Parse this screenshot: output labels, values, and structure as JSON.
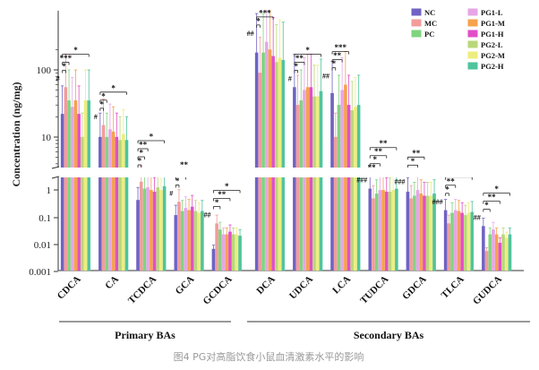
{
  "chart_data": {
    "type": "bar",
    "ylabel": "Concentration (ng/mg)",
    "y_scale": "log (broken axis)",
    "y_ticks_upper": [
      "100",
      "10"
    ],
    "y_ticks_lower": [
      "1",
      "0.1",
      "0.01",
      "0.001"
    ],
    "series": [
      {
        "name": "NC",
        "color": "#6f63c4"
      },
      {
        "name": "MC",
        "color": "#f29c9c"
      },
      {
        "name": "PC",
        "color": "#7fd47f"
      },
      {
        "name": "PG1-L",
        "color": "#e6a6e6"
      },
      {
        "name": "PG1-M",
        "color": "#f6a24e"
      },
      {
        "name": "PG1-H",
        "color": "#e14fc8"
      },
      {
        "name": "PG2-L",
        "color": "#b9d77a"
      },
      {
        "name": "PG2-M",
        "color": "#eeed7d"
      },
      {
        "name": "PG2-H",
        "color": "#4fc49d"
      }
    ],
    "categories": [
      "CDCA",
      "CA",
      "TCDCA",
      "GCA",
      "GCDCA",
      "DCA",
      "UDCA",
      "LCA",
      "TUDCA",
      "GDCA",
      "TLCA",
      "GUDCA"
    ],
    "data": [
      [
        22,
        55,
        35,
        28,
        35,
        22,
        10,
        35,
        35
      ],
      [
        10,
        15,
        10,
        13,
        12,
        10,
        9,
        11,
        9
      ],
      [
        0.35,
        1.6,
        0.9,
        1.0,
        0.8,
        0.7,
        1.0,
        0.8,
        1.1
      ],
      [
        0.1,
        0.3,
        0.14,
        0.18,
        0.15,
        0.2,
        0.14,
        0.12,
        0.14
      ],
      [
        0.006,
        0.05,
        0.03,
        0.02,
        0.02,
        0.025,
        0.02,
        0.02,
        0.018
      ],
      [
        180,
        90,
        180,
        260,
        200,
        160,
        130,
        150,
        140
      ],
      [
        55,
        30,
        35,
        50,
        55,
        55,
        40,
        40,
        48
      ],
      [
        45,
        10,
        30,
        50,
        60,
        30,
        25,
        28,
        30
      ],
      [
        0.9,
        0.4,
        0.6,
        0.8,
        0.8,
        0.7,
        0.7,
        0.8,
        0.9
      ],
      [
        0.7,
        0.4,
        0.5,
        0.8,
        0.6,
        0.5,
        0.5,
        0.5,
        0.6
      ],
      [
        0.15,
        0.05,
        0.12,
        0.15,
        0.14,
        0.12,
        0.1,
        0.12,
        0.13
      ],
      [
        0.04,
        0.005,
        0.02,
        0.03,
        0.02,
        0.01,
        0.02,
        0.015,
        0.02
      ]
    ],
    "significance": [
      [
        {
          "label": "*",
          "x1": 0,
          "x2": 8,
          "lvl": 3
        },
        {
          "label": "***",
          "x1": 0,
          "x2": 2,
          "lvl": 2
        },
        {
          "label": "*",
          "x1": 0,
          "x2": 1,
          "lvl": 1
        },
        {
          "label": "#",
          "x1": 0,
          "x2": 0,
          "lvl": 0
        }
      ],
      [
        {
          "label": "*",
          "x1": 0,
          "x2": 8,
          "lvl": 3
        },
        {
          "label": "*",
          "x1": 0,
          "x2": 2,
          "lvl": 2
        },
        {
          "label": "*",
          "x1": 0,
          "x2": 1,
          "lvl": 1
        },
        {
          "label": "#",
          "x1": 0,
          "x2": 0,
          "lvl": 0
        }
      ],
      [
        {
          "label": "*",
          "x1": 0,
          "x2": 8,
          "lvl": 4
        },
        {
          "label": "**",
          "x1": 0,
          "x2": 3,
          "lvl": 3
        },
        {
          "label": "*",
          "x1": 0,
          "x2": 2,
          "lvl": 2
        },
        {
          "label": "*",
          "x1": 0,
          "x2": 1,
          "lvl": 1
        },
        {
          "label": "###",
          "x1": 0,
          "x2": 0,
          "lvl": 0
        }
      ],
      [
        {
          "label": "**",
          "x1": 0,
          "x2": 5,
          "lvl": 3
        },
        {
          "label": "*",
          "x1": 0,
          "x2": 3,
          "lvl": 2
        },
        {
          "label": "*",
          "x1": 0,
          "x2": 1,
          "lvl": 1
        },
        {
          "label": "#",
          "x1": 0,
          "x2": 0,
          "lvl": 0
        }
      ],
      [
        {
          "label": "*",
          "x1": 0,
          "x2": 8,
          "lvl": 3
        },
        {
          "label": "**",
          "x1": 0,
          "x2": 5,
          "lvl": 2
        },
        {
          "label": "*",
          "x1": 0,
          "x2": 2,
          "lvl": 1
        },
        {
          "label": "##",
          "x1": 0,
          "x2": 0,
          "lvl": 0
        }
      ],
      [
        {
          "label": "***",
          "x1": 0,
          "x2": 5,
          "lvl": 2
        },
        {
          "label": "*",
          "x1": 0,
          "x2": 1,
          "lvl": 1
        },
        {
          "label": "##",
          "x1": 0,
          "x2": 0,
          "lvl": 0
        }
      ],
      [
        {
          "label": "*",
          "x1": 0,
          "x2": 8,
          "lvl": 3
        },
        {
          "label": "**",
          "x1": 0,
          "x2": 3,
          "lvl": 2
        },
        {
          "label": "*",
          "x1": 0,
          "x2": 1,
          "lvl": 1
        },
        {
          "label": "#",
          "x1": 0,
          "x2": 0,
          "lvl": 0
        }
      ],
      [
        {
          "label": "***",
          "x1": 0,
          "x2": 5,
          "lvl": 3
        },
        {
          "label": "**",
          "x1": 0,
          "x2": 3,
          "lvl": 2
        },
        {
          "label": "*",
          "x1": 0,
          "x2": 1,
          "lvl": 1
        },
        {
          "label": "##",
          "x1": 0,
          "x2": 0,
          "lvl": 0
        }
      ],
      [
        {
          "label": "**",
          "x1": 0,
          "x2": 8,
          "lvl": 4
        },
        {
          "label": "**",
          "x1": 0,
          "x2": 5,
          "lvl": 3
        },
        {
          "label": "*",
          "x1": 0,
          "x2": 3,
          "lvl": 2
        },
        {
          "label": "**",
          "x1": 0,
          "x2": 1,
          "lvl": 1
        },
        {
          "label": "###",
          "x1": 0,
          "x2": 0,
          "lvl": 0
        }
      ],
      [
        {
          "label": "**",
          "x1": 0,
          "x2": 5,
          "lvl": 3
        },
        {
          "label": "*",
          "x1": 0,
          "x2": 3,
          "lvl": 2
        },
        {
          "label": "###",
          "x1": 0,
          "x2": 0,
          "lvl": 0
        }
      ],
      [
        {
          "label": "*",
          "x1": 0,
          "x2": 8,
          "lvl": 3
        },
        {
          "label": "**",
          "x1": 0,
          "x2": 3,
          "lvl": 2
        },
        {
          "label": "*",
          "x1": 0,
          "x2": 1,
          "lvl": 1
        },
        {
          "label": "###",
          "x1": 0,
          "x2": 0,
          "lvl": 0
        }
      ],
      [
        {
          "label": "*",
          "x1": 0,
          "x2": 8,
          "lvl": 3
        },
        {
          "label": "**",
          "x1": 0,
          "x2": 5,
          "lvl": 2
        },
        {
          "label": "*",
          "x1": 0,
          "x2": 2,
          "lvl": 1
        },
        {
          "label": "##",
          "x1": 0,
          "x2": 0,
          "lvl": 0
        }
      ]
    ],
    "groups": [
      {
        "label": "Primary BAs",
        "from": 0,
        "to": 4
      },
      {
        "label": "Secondary BAs",
        "from": 5,
        "to": 11
      }
    ],
    "legend_position": "top-right"
  },
  "caption": "图4 PG对高脂饮食小鼠血清激素水平的影响"
}
